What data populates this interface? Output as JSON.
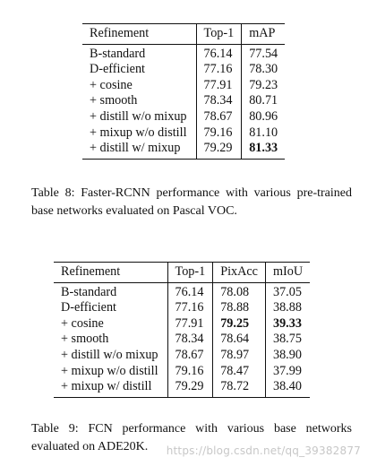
{
  "table8": {
    "headers": [
      "Refinement",
      "Top-1",
      "mAP"
    ],
    "rows": [
      {
        "name": "B-standard",
        "top1": "76.14",
        "map": "77.54"
      },
      {
        "name": "D-efficient",
        "top1": "77.16",
        "map": "78.30"
      },
      {
        "name": "+ cosine",
        "top1": "77.91",
        "map": "79.23"
      },
      {
        "name": "+ smooth",
        "top1": "78.34",
        "map": "80.71"
      },
      {
        "name": "+ distill w/o mixup",
        "top1": "78.67",
        "map": "80.96"
      },
      {
        "name": "+ mixup w/o distill",
        "top1": "79.16",
        "map": "81.10"
      },
      {
        "name": "+ distill w/ mixup",
        "top1": "79.29",
        "map": "81.33"
      }
    ],
    "caption": "Table 8: Faster-RCNN performance with various pre-trained base networks evaluated on Pascal VOC."
  },
  "table9": {
    "headers": [
      "Refinement",
      "Top-1",
      "PixAcc",
      "mIoU"
    ],
    "rows": [
      {
        "name": "B-standard",
        "top1": "76.14",
        "pixacc": "78.08",
        "miou": "37.05"
      },
      {
        "name": "D-efficient",
        "top1": "77.16",
        "pixacc": "78.88",
        "miou": "38.88"
      },
      {
        "name": "+ cosine",
        "top1": "77.91",
        "pixacc": "79.25",
        "miou": "39.33"
      },
      {
        "name": "+ smooth",
        "top1": "78.34",
        "pixacc": "78.64",
        "miou": "38.75"
      },
      {
        "name": "+ distill w/o mixup",
        "top1": "78.67",
        "pixacc": "78.97",
        "miou": "38.90"
      },
      {
        "name": "+ mixup w/o distill",
        "top1": "79.16",
        "pixacc": "78.47",
        "miou": "37.99"
      },
      {
        "name": "+ mixup w/ distill",
        "top1": "79.29",
        "pixacc": "78.72",
        "miou": "38.40"
      }
    ],
    "caption": "Table 9: FCN performance with various base networks evaluated on ADE20K."
  },
  "watermark": "https://blog.csdn.net/qq_39382877"
}
